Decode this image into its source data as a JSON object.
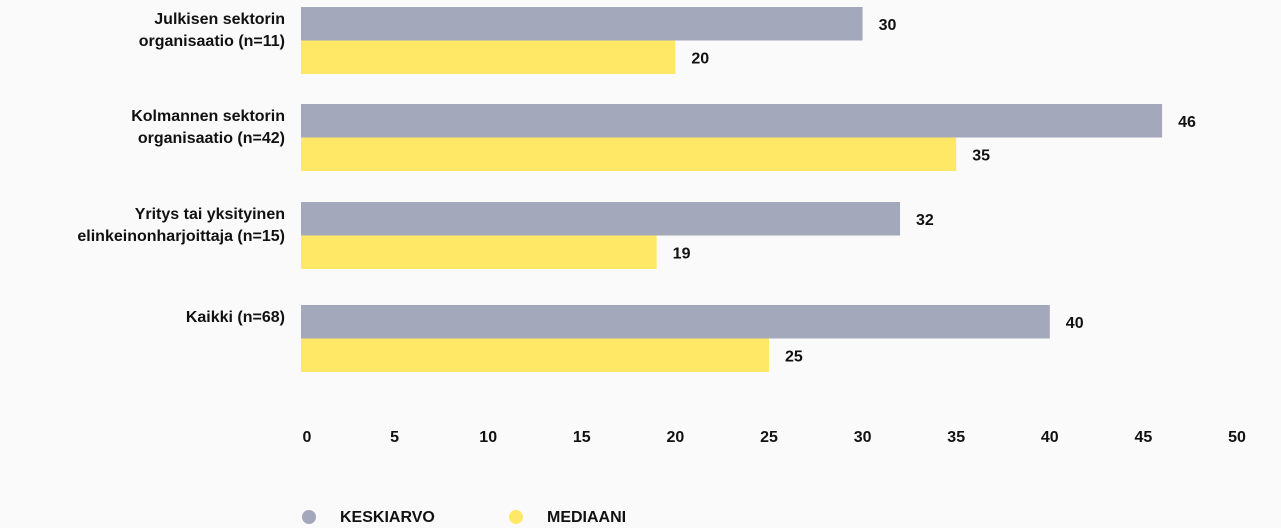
{
  "chart_data": {
    "type": "bar",
    "orientation": "horizontal",
    "categories": [
      "Julkisen sektorin\norganisaatio (n=11)",
      "Kolmannen sektorin\norganisaatio (n=42)",
      "Yritys tai yksityinen\nelinkeinonharjoittaja (n=15)",
      "Kaikki (n=68)"
    ],
    "series": [
      {
        "name": "KESKIARVO",
        "color": "#a3a8ba",
        "values": [
          30,
          46,
          32,
          40
        ]
      },
      {
        "name": "MEDIAANI",
        "color": "#ffe866",
        "values": [
          20,
          35,
          19,
          25
        ]
      }
    ],
    "xlim": [
      0,
      50
    ],
    "xticks": [
      0,
      5,
      10,
      15,
      20,
      25,
      30,
      35,
      40,
      45,
      50
    ],
    "grid": false,
    "legend": "bottom"
  }
}
